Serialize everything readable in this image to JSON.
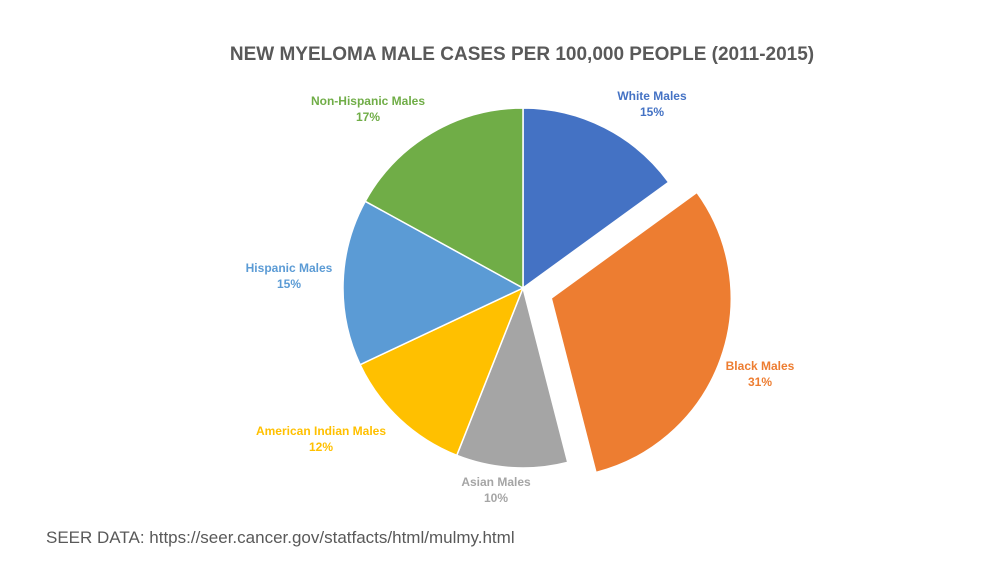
{
  "chart_data": {
    "type": "pie",
    "title": "NEW MYELOMA MALE CASES PER 100,000 PEOPLE (2011-2015)",
    "slices": [
      {
        "label": "White Males",
        "value": 15,
        "display": "15%",
        "color": "#4472C4",
        "exploded": false
      },
      {
        "label": "Black Males",
        "value": 31,
        "display": "31%",
        "color": "#ED7D31",
        "exploded": true
      },
      {
        "label": "Asian Males",
        "value": 10,
        "display": "10%",
        "color": "#A5A5A5",
        "exploded": false
      },
      {
        "label": "American Indian Males",
        "value": 12,
        "display": "12%",
        "color": "#FFC000",
        "exploded": false
      },
      {
        "label": "Hispanic Males",
        "value": 15,
        "display": "15%",
        "color": "#5B9BD5",
        "exploded": false
      },
      {
        "label": "Non-Hispanic Males",
        "value": 17,
        "display": "17%",
        "color": "#70AD47",
        "exploded": false
      }
    ]
  },
  "footer": {
    "source": "SEER DATA: https://seer.cancer.gov/statfacts/html/mulmy.html"
  }
}
